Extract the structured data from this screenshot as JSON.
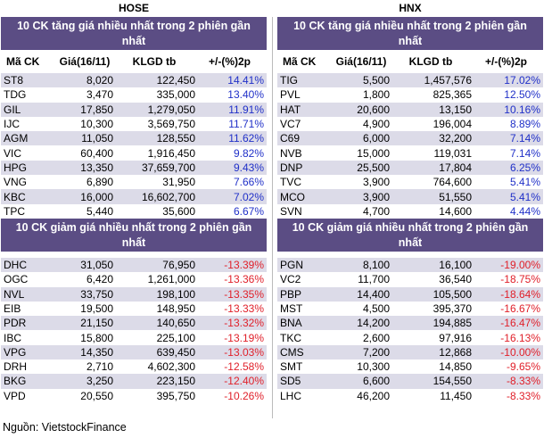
{
  "exchanges": {
    "left": "HOSE",
    "right": "HNX"
  },
  "section_titles": {
    "gainers": "10 CK tăng giá nhiều nhất trong 2 phiên gần nhất",
    "losers": "10 CK giảm giá nhiều nhất trong 2 phiên gần nhất"
  },
  "columns": {
    "ticker": "Mã CK",
    "price": "Giá(16/11)",
    "volume": "KLGD tb",
    "change": "+/-(%)2p"
  },
  "hose": {
    "gainers": [
      [
        "ST8",
        "8,020",
        "122,450",
        "14.41%"
      ],
      [
        "TDG",
        "3,470",
        "335,000",
        "13.40%"
      ],
      [
        "GIL",
        "17,850",
        "1,279,050",
        "11.91%"
      ],
      [
        "IJC",
        "10,300",
        "3,569,750",
        "11.71%"
      ],
      [
        "AGM",
        "11,050",
        "128,550",
        "11.62%"
      ],
      [
        "VIC",
        "60,400",
        "1,916,450",
        "9.82%"
      ],
      [
        "HPG",
        "13,350",
        "37,659,700",
        "9.43%"
      ],
      [
        "VNG",
        "6,890",
        "31,950",
        "7.66%"
      ],
      [
        "KBC",
        "16,000",
        "16,602,700",
        "7.02%"
      ],
      [
        "TPC",
        "5,440",
        "35,600",
        "6.67%"
      ]
    ],
    "losers": [
      [
        "DHC",
        "31,050",
        "76,950",
        "-13.39%"
      ],
      [
        "OGC",
        "6,420",
        "1,261,000",
        "-13.36%"
      ],
      [
        "NVL",
        "33,750",
        "198,100",
        "-13.35%"
      ],
      [
        "EIB",
        "19,500",
        "148,950",
        "-13.33%"
      ],
      [
        "PDR",
        "21,150",
        "140,650",
        "-13.32%"
      ],
      [
        "IBC",
        "15,800",
        "225,100",
        "-13.19%"
      ],
      [
        "VPG",
        "14,350",
        "639,450",
        "-13.03%"
      ],
      [
        "DRH",
        "2,710",
        "4,602,300",
        "-12.58%"
      ],
      [
        "BKG",
        "3,250",
        "223,150",
        "-12.40%"
      ],
      [
        "VPD",
        "20,550",
        "395,750",
        "-10.26%"
      ]
    ]
  },
  "hnx": {
    "gainers": [
      [
        "TIG",
        "5,500",
        "1,457,576",
        "17.02%"
      ],
      [
        "PVL",
        "1,800",
        "825,365",
        "12.50%"
      ],
      [
        "HAT",
        "20,600",
        "13,150",
        "10.16%"
      ],
      [
        "VC7",
        "4,900",
        "196,004",
        "8.89%"
      ],
      [
        "C69",
        "6,000",
        "32,200",
        "7.14%"
      ],
      [
        "NVB",
        "15,000",
        "119,031",
        "7.14%"
      ],
      [
        "DNP",
        "25,500",
        "17,804",
        "6.25%"
      ],
      [
        "TVC",
        "3,900",
        "764,600",
        "5.41%"
      ],
      [
        "MCO",
        "3,900",
        "51,550",
        "5.41%"
      ],
      [
        "SVN",
        "4,700",
        "14,600",
        "4.44%"
      ]
    ],
    "losers": [
      [
        "PGN",
        "8,100",
        "16,100",
        "-19.00%"
      ],
      [
        "VC2",
        "11,700",
        "36,540",
        "-18.75%"
      ],
      [
        "PBP",
        "14,400",
        "105,500",
        "-18.64%"
      ],
      [
        "MST",
        "4,500",
        "395,370",
        "-16.67%"
      ],
      [
        "BNA",
        "14,200",
        "194,885",
        "-16.47%"
      ],
      [
        "TKC",
        "2,600",
        "97,916",
        "-16.13%"
      ],
      [
        "CMS",
        "7,200",
        "12,868",
        "-10.00%"
      ],
      [
        "SMT",
        "10,300",
        "14,850",
        "-9.65%"
      ],
      [
        "SD5",
        "6,600",
        "154,550",
        "-8.33%"
      ],
      [
        "LHC",
        "46,200",
        "11,450",
        "-8.33%"
      ]
    ]
  },
  "source": "Nguồn: VietstockFinance",
  "colors": {
    "header_bg": "#5b4d84",
    "row_alt": "#dcdbe8",
    "gain": "#2030c8",
    "loss": "#e0202a"
  }
}
